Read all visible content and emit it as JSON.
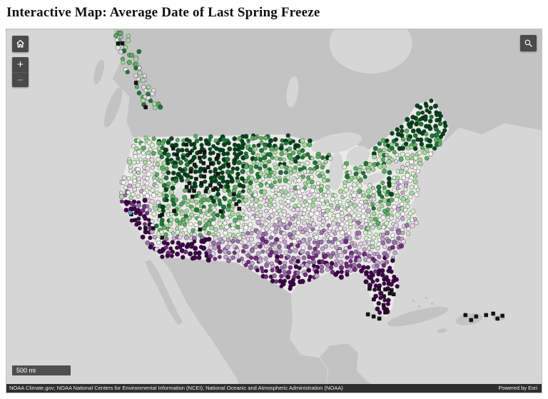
{
  "page": {
    "title": "Interactive Map: Average Date of Last Spring Freeze"
  },
  "map": {
    "controls": {
      "zoom_in_label": "+",
      "zoom_out_label": "−",
      "icons": {
        "home": "home-icon",
        "search": "search-icon",
        "zoom_in": "plus-icon",
        "zoom_out": "minus-icon"
      }
    },
    "scale_bar": "500 mi",
    "attribution": {
      "sources": "NOAA Climate.gov; NOAA National Centers for Environmental Information (NCEI); National Oceanic and Atmospheric Administration (NOAA)",
      "powered_by": "Powered by Esri"
    },
    "colors": {
      "ocean": "#d6d6d6",
      "land": "#c3c3c3",
      "us_land": "#eaeae8",
      "lake": "#d6d6d6",
      "control_bg": "#4a4a4a",
      "control_icon": "#ffffff",
      "attribution_bg": "#2e2e2e",
      "scalebar_bg": "#4f4f4f"
    },
    "station_palette": {
      "gradient_late_north_to_early_south": [
        "#00441b",
        "#1b7837",
        "#5aae61",
        "#a6dba0",
        "#d9f0d3",
        "#f7f7f7",
        "#e7d4e8",
        "#c2a5cf",
        "#9970ab",
        "#762a83",
        "#40004b"
      ],
      "no_freeze": "#161616",
      "highlight": "#5b9bd5"
    }
  }
}
